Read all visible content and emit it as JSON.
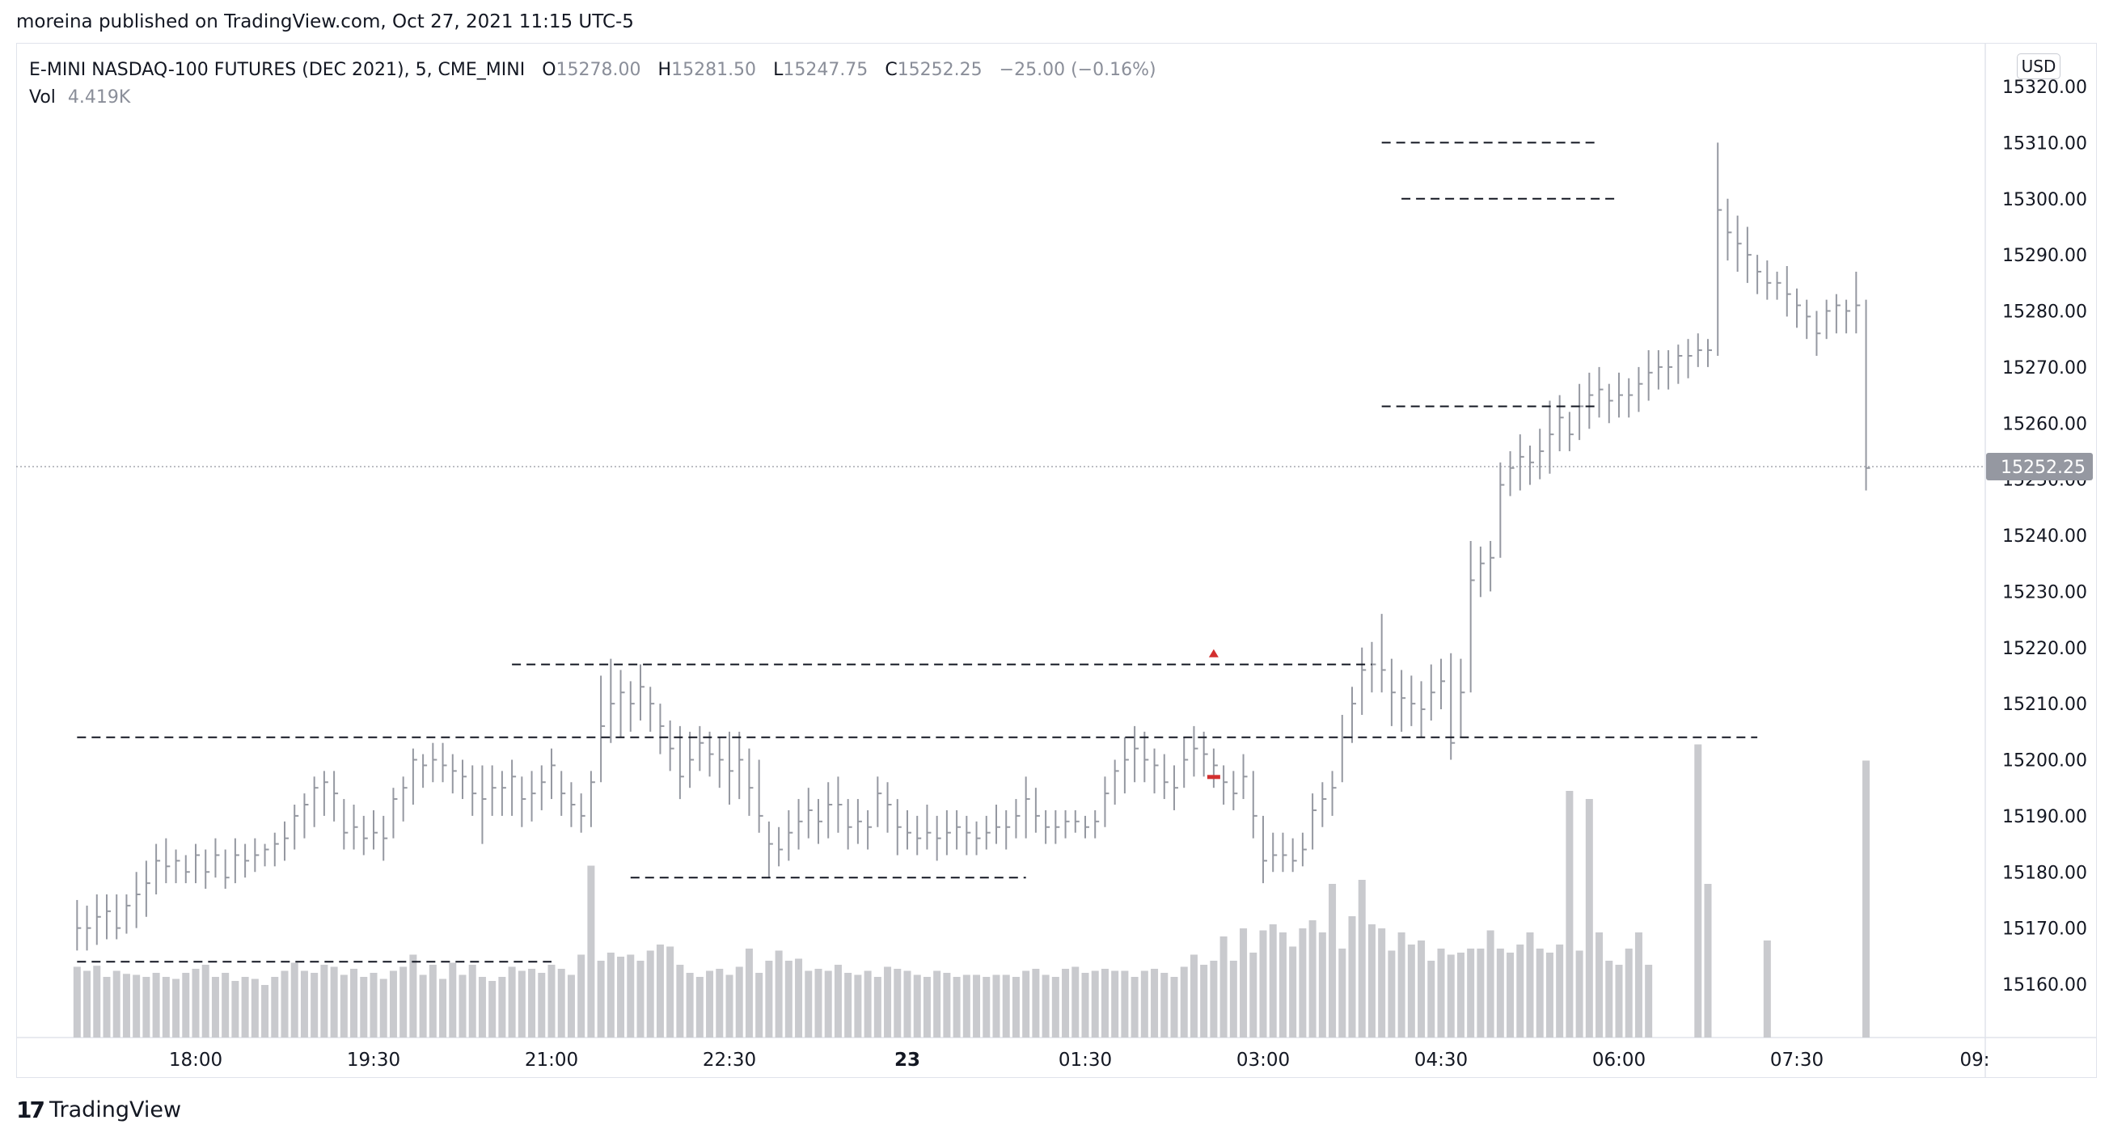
{
  "header": {
    "published_text": "moreina published on TradingView.com, Oct 27, 2021 11:15 UTC-5"
  },
  "legend": {
    "symbol": "E-MINI NASDAQ-100 FUTURES (DEC 2021), 5, CME_MINI",
    "open_label": "O",
    "open": "15278.00",
    "high_label": "H",
    "high": "15281.50",
    "low_label": "L",
    "low": "15247.75",
    "close_label": "C",
    "close": "15252.25",
    "change": "−25.00 (−0.16%)",
    "vol_label": "Vol",
    "vol_value": "4.419K"
  },
  "currency": "USD",
  "brand": {
    "name": "TradingView",
    "logo_icon": "tradingview-logo-icon"
  },
  "colors": {
    "bars": "#9598a1",
    "volume": "#c9cace",
    "marker": "#d32f2f",
    "price_badge": "#9598a1"
  },
  "chart_data": {
    "type": "bar",
    "price_axis": {
      "side": "right",
      "ticks": [
        "15160.00",
        "15170.00",
        "15180.00",
        "15190.00",
        "15200.00",
        "15210.00",
        "15220.00",
        "15230.00",
        "15240.00",
        "15250.00",
        "15260.00",
        "15270.00",
        "15280.00",
        "15290.00",
        "15300.00",
        "15310.00",
        "15320.00"
      ],
      "range": [
        15151,
        15325
      ]
    },
    "time_axis": {
      "ticks": [
        "18:00",
        "19:30",
        "21:00",
        "22:30",
        "23",
        "01:30",
        "03:00",
        "04:30",
        "06:00",
        "07:30",
        "09:"
      ],
      "bold_ticks": [
        "23"
      ]
    },
    "last_price": "15252.25",
    "levels": [
      {
        "price": 15164,
        "from": "17:00",
        "to": "21:00"
      },
      {
        "price": 15204,
        "from": "17:00",
        "to": "07:10"
      },
      {
        "price": 15217,
        "from": "20:40",
        "to": "03:55"
      },
      {
        "price": 15179,
        "from": "21:40",
        "to": "01:00"
      },
      {
        "price": 15310,
        "from": "04:00",
        "to": "05:50"
      },
      {
        "price": 15300,
        "from": "04:10",
        "to": "06:00"
      },
      {
        "price": 15263,
        "from": "04:00",
        "to": "05:50"
      }
    ],
    "markers": [
      {
        "type": "arrow-up",
        "time": "02:35",
        "price": 15219
      },
      {
        "type": "dash",
        "time": "02:35",
        "price": 15197
      }
    ],
    "bars_interval_minutes": 5,
    "start_time": "17:00",
    "bars": [
      [
        15175,
        15166,
        15170
      ],
      [
        15174,
        15166,
        15170
      ],
      [
        15176,
        15167,
        15172
      ],
      [
        15176,
        15168,
        15173
      ],
      [
        15176,
        15168,
        15170
      ],
      [
        15176,
        15169,
        15174
      ],
      [
        15180,
        15170,
        15176
      ],
      [
        15182,
        15172,
        15178
      ],
      [
        15185,
        15176,
        15182
      ],
      [
        15186,
        15178,
        15181
      ],
      [
        15184,
        15178,
        15182
      ],
      [
        15183,
        15178,
        15180
      ],
      [
        15185,
        15178,
        15183
      ],
      [
        15184,
        15177,
        15180
      ],
      [
        15186,
        15179,
        15183
      ],
      [
        15184,
        15177,
        15179
      ],
      [
        15186,
        15178,
        15183
      ],
      [
        15185,
        15179,
        15182
      ],
      [
        15186,
        15180,
        15183
      ],
      [
        15185,
        15181,
        15184
      ],
      [
        15187,
        15181,
        15185
      ],
      [
        15189,
        15182,
        15186
      ],
      [
        15192,
        15184,
        15190
      ],
      [
        15194,
        15186,
        15192
      ],
      [
        15197,
        15188,
        15195
      ],
      [
        15198,
        15190,
        15196
      ],
      [
        15198,
        15189,
        15194
      ],
      [
        15193,
        15184,
        15187
      ],
      [
        15192,
        15184,
        15188
      ],
      [
        15190,
        15183,
        15186
      ],
      [
        15191,
        15184,
        15187
      ],
      [
        15190,
        15182,
        15186
      ],
      [
        15195,
        15186,
        15193
      ],
      [
        15197,
        15189,
        15195
      ],
      [
        15202,
        15192,
        15200
      ],
      [
        15201,
        15195,
        15199
      ],
      [
        15203,
        15196,
        15200
      ],
      [
        15203,
        15196,
        15199
      ],
      [
        15201,
        15194,
        15198
      ],
      [
        15200,
        15193,
        15197
      ],
      [
        15199,
        15190,
        15194
      ],
      [
        15199,
        15185,
        15193
      ],
      [
        15199,
        15190,
        15195
      ],
      [
        15198,
        15190,
        15195
      ],
      [
        15200,
        15190,
        15197
      ],
      [
        15197,
        15188,
        15193
      ],
      [
        15198,
        15189,
        15194
      ],
      [
        15199,
        15191,
        15196
      ],
      [
        15202,
        15193,
        15199
      ],
      [
        15198,
        15190,
        15194
      ],
      [
        15196,
        15188,
        15192
      ],
      [
        15194,
        15187,
        15190
      ],
      [
        15198,
        15188,
        15196
      ],
      [
        15215,
        15196,
        15206
      ],
      [
        15218,
        15203,
        15210
      ],
      [
        15216,
        15204,
        15212
      ],
      [
        15214,
        15205,
        15210
      ],
      [
        15217,
        15207,
        15213
      ],
      [
        15213,
        15205,
        15210
      ],
      [
        15210,
        15201,
        15206
      ],
      [
        15207,
        15198,
        15202
      ],
      [
        15206,
        15193,
        15197
      ],
      [
        15205,
        15195,
        15200
      ],
      [
        15206,
        15198,
        15203
      ],
      [
        15205,
        15197,
        15201
      ],
      [
        15204,
        15195,
        15200
      ],
      [
        15205,
        15192,
        15198
      ],
      [
        15205,
        15193,
        15200
      ],
      [
        15202,
        15190,
        15195
      ],
      [
        15200,
        15187,
        15190
      ],
      [
        15189,
        15179,
        15185
      ],
      [
        15188,
        15181,
        15184
      ],
      [
        15191,
        15182,
        15187
      ],
      [
        15193,
        15184,
        15189
      ],
      [
        15195,
        15186,
        15191
      ],
      [
        15193,
        15185,
        15189
      ],
      [
        15196,
        15186,
        15192
      ],
      [
        15197,
        15187,
        15192
      ],
      [
        15193,
        15184,
        15188
      ],
      [
        15193,
        15185,
        15189
      ],
      [
        15191,
        15184,
        15188
      ],
      [
        15197,
        15188,
        15194
      ],
      [
        15196,
        15187,
        15192
      ],
      [
        15193,
        15183,
        15188
      ],
      [
        15191,
        15184,
        15187
      ],
      [
        15190,
        15183,
        15186
      ],
      [
        15192,
        15184,
        15187
      ],
      [
        15190,
        15182,
        15186
      ],
      [
        15191,
        15183,
        15187
      ],
      [
        15191,
        15184,
        15188
      ],
      [
        15190,
        15183,
        15187
      ],
      [
        15189,
        15183,
        15186
      ],
      [
        15190,
        15184,
        15187
      ],
      [
        15192,
        15185,
        15188
      ],
      [
        15191,
        15184,
        15188
      ],
      [
        15193,
        15186,
        15190
      ],
      [
        15197,
        15186,
        15193
      ],
      [
        15195,
        15187,
        15190
      ],
      [
        15191,
        15185,
        15188
      ],
      [
        15191,
        15185,
        15188
      ],
      [
        15191,
        15186,
        15189
      ],
      [
        15191,
        15187,
        15189
      ],
      [
        15190,
        15186,
        15188
      ],
      [
        15191,
        15186,
        15189
      ],
      [
        15197,
        15188,
        15194
      ],
      [
        15200,
        15192,
        15198
      ],
      [
        15204,
        15194,
        15200
      ],
      [
        15206,
        15196,
        15202
      ],
      [
        15205,
        15196,
        15200
      ],
      [
        15202,
        15194,
        15199
      ],
      [
        15201,
        15193,
        15196
      ],
      [
        15199,
        15191,
        15195
      ],
      [
        15204,
        15195,
        15200
      ],
      [
        15206,
        15197,
        15202
      ],
      [
        15205,
        15197,
        15201
      ],
      [
        15202,
        15195,
        15199
      ],
      [
        15199,
        15192,
        15196
      ],
      [
        15198,
        15191,
        15194
      ],
      [
        15201,
        15193,
        15197
      ],
      [
        15198,
        15186,
        15190
      ],
      [
        15190,
        15178,
        15182
      ],
      [
        15187,
        15180,
        15183
      ],
      [
        15187,
        15180,
        15183
      ],
      [
        15186,
        15180,
        15182
      ],
      [
        15187,
        15181,
        15184
      ],
      [
        15194,
        15184,
        15191
      ],
      [
        15196,
        15188,
        15193
      ],
      [
        15198,
        15190,
        15195
      ],
      [
        15208,
        15196,
        15204
      ],
      [
        15213,
        15203,
        15210
      ],
      [
        15220,
        15208,
        15216
      ],
      [
        15221,
        15212,
        15217
      ],
      [
        15226,
        15212,
        15216
      ],
      [
        15218,
        15206,
        15212
      ],
      [
        15216,
        15205,
        15211
      ],
      [
        15215,
        15206,
        15210
      ],
      [
        15214,
        15204,
        15209
      ],
      [
        15217,
        15207,
        15212
      ],
      [
        15218,
        15209,
        15214
      ],
      [
        15219,
        15200,
        15203
      ],
      [
        15218,
        15204,
        15212
      ],
      [
        15239,
        15212,
        15232
      ],
      [
        15238,
        15229,
        15235
      ],
      [
        15239,
        15230,
        15236
      ],
      [
        15253,
        15236,
        15249
      ],
      [
        15255,
        15247,
        15252
      ],
      [
        15258,
        15248,
        15254
      ],
      [
        15256,
        15249,
        15253
      ],
      [
        15259,
        15250,
        15255
      ],
      [
        15264,
        15251,
        15258
      ],
      [
        15265,
        15255,
        15261
      ],
      [
        15262,
        15255,
        15258
      ],
      [
        15267,
        15257,
        15263
      ],
      [
        15269,
        15259,
        15265
      ],
      [
        15270,
        15261,
        15266
      ],
      [
        15267,
        15260,
        15264
      ],
      [
        15269,
        15261,
        15265
      ],
      [
        15268,
        15261,
        15265
      ],
      [
        15270,
        15262,
        15267
      ],
      [
        15273,
        15264,
        15269
      ],
      [
        15273,
        15266,
        15270
      ],
      [
        15273,
        15266,
        15270
      ],
      [
        15274,
        15267,
        15272
      ],
      [
        15275,
        15268,
        15272
      ],
      [
        15276,
        15270,
        15273
      ],
      [
        15275,
        15270,
        15273
      ],
      [
        15310,
        15272,
        15298
      ],
      [
        15300,
        15289,
        15294
      ],
      [
        15297,
        15287,
        15292
      ],
      [
        15295,
        15285,
        15290
      ],
      [
        15290,
        15283,
        15287
      ],
      [
        15289,
        15282,
        15285
      ],
      [
        15287,
        15282,
        15285
      ],
      [
        15288,
        15279,
        15283
      ],
      [
        15284,
        15277,
        15281
      ],
      [
        15282,
        15275,
        15279
      ],
      [
        15280,
        15272,
        15276
      ],
      [
        15282,
        15275,
        15280
      ],
      [
        15283,
        15276,
        15281
      ],
      [
        15282,
        15276,
        15280
      ],
      [
        15287,
        15276,
        15281
      ],
      [
        15282,
        15248,
        15252
      ]
    ],
    "volumes": [
      350,
      330,
      355,
      300,
      330,
      315,
      310,
      300,
      320,
      300,
      290,
      320,
      340,
      360,
      300,
      320,
      280,
      300,
      290,
      260,
      300,
      330,
      370,
      330,
      320,
      360,
      350,
      310,
      340,
      300,
      320,
      290,
      330,
      350,
      410,
      310,
      360,
      290,
      370,
      310,
      360,
      300,
      280,
      300,
      350,
      330,
      340,
      320,
      360,
      340,
      310,
      410,
      850,
      380,
      420,
      400,
      410,
      380,
      430,
      460,
      450,
      360,
      320,
      300,
      330,
      340,
      310,
      350,
      440,
      320,
      380,
      430,
      380,
      390,
      330,
      340,
      330,
      360,
      320,
      310,
      330,
      300,
      350,
      340,
      330,
      310,
      300,
      330,
      320,
      300,
      310,
      310,
      300,
      310,
      310,
      300,
      330,
      340,
      310,
      300,
      340,
      350,
      320,
      330,
      340,
      330,
      330,
      300,
      330,
      340,
      320,
      300,
      350,
      410,
      360,
      380,
      500,
      380,
      540,
      420,
      530,
      560,
      520,
      450,
      540,
      580,
      520,
      760,
      440,
      600,
      780,
      560,
      540,
      430,
      520,
      460,
      480,
      380,
      440,
      410,
      420,
      440,
      440,
      530,
      440,
      420,
      460,
      520,
      440,
      420,
      460,
      1220,
      430,
      1180,
      520,
      380,
      360,
      440,
      520,
      360
    ],
    "volume_extra": [
      1450,
      760,
      480,
      1370
    ],
    "volume_extra_positions": [
      164,
      165,
      171,
      181
    ]
  }
}
